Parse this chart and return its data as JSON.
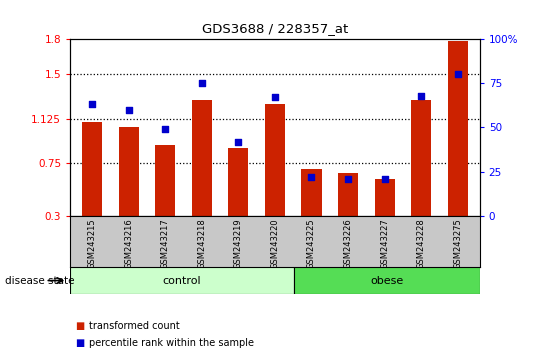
{
  "title": "GDS3688 / 228357_at",
  "samples": [
    "GSM243215",
    "GSM243216",
    "GSM243217",
    "GSM243218",
    "GSM243219",
    "GSM243220",
    "GSM243225",
    "GSM243226",
    "GSM243227",
    "GSM243228",
    "GSM243275"
  ],
  "transformed_count": [
    1.1,
    1.05,
    0.9,
    1.28,
    0.88,
    1.25,
    0.7,
    0.66,
    0.61,
    1.28,
    1.78
  ],
  "percentile_rank": [
    63,
    60,
    49,
    75,
    42,
    67,
    22,
    21,
    21,
    68,
    80
  ],
  "ylim_left": [
    0.3,
    1.8
  ],
  "ylim_right": [
    0,
    100
  ],
  "yticks_left": [
    0.3,
    0.75,
    1.125,
    1.5,
    1.8
  ],
  "yticks_right": [
    0,
    25,
    50,
    75,
    100
  ],
  "ytick_labels_left": [
    "0.3",
    "0.75",
    "1.125",
    "1.5",
    "1.8"
  ],
  "ytick_labels_right": [
    "0",
    "25",
    "50",
    "75",
    "100%"
  ],
  "hlines": [
    0.75,
    1.125,
    1.5
  ],
  "bar_color": "#cc2200",
  "dot_color": "#0000cc",
  "group_labels": [
    "control",
    "obese"
  ],
  "control_count": 6,
  "obese_count": 5,
  "control_color": "#ccffcc",
  "obese_color": "#55dd55",
  "disease_state_label": "disease state",
  "legend_items": [
    {
      "label": "transformed count",
      "color": "#cc2200"
    },
    {
      "label": "percentile rank within the sample",
      "color": "#0000cc"
    }
  ],
  "bar_width": 0.55,
  "tick_area_color": "#c8c8c8"
}
